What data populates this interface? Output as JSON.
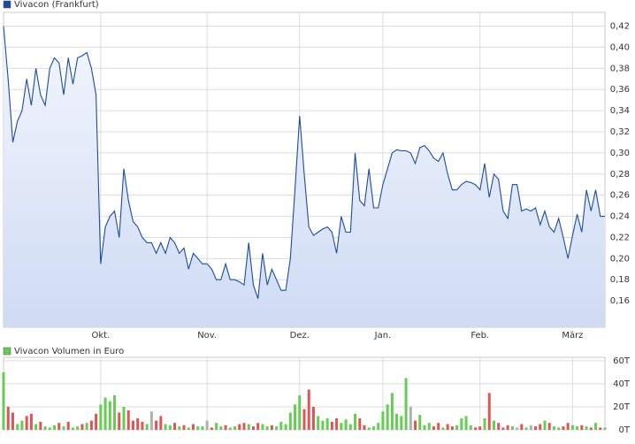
{
  "chart_data": [
    {
      "type": "area",
      "categories": [
        null,
        null,
        null,
        null,
        null,
        null,
        null,
        null,
        null,
        null,
        null,
        null,
        null,
        null,
        null,
        null,
        null,
        null,
        null,
        null,
        null,
        "Okt.",
        null,
        null,
        null,
        null,
        null,
        null,
        null,
        null,
        null,
        null,
        null,
        null,
        null,
        null,
        null,
        null,
        null,
        null,
        null,
        null,
        null,
        null,
        "Nov.",
        null,
        null,
        null,
        null,
        null,
        null,
        null,
        null,
        null,
        null,
        null,
        null,
        null,
        null,
        null,
        null,
        null,
        null,
        null,
        "Dez.",
        null,
        null,
        null,
        null,
        null,
        null,
        null,
        null,
        null,
        null,
        null,
        null,
        null,
        null,
        null,
        null,
        null,
        "Jan.",
        null,
        null,
        null,
        null,
        null,
        null,
        null,
        null,
        null,
        null,
        null,
        null,
        null,
        null,
        null,
        null,
        null,
        null,
        null,
        null,
        "Feb.",
        null,
        null,
        null,
        null,
        null,
        null,
        null,
        null,
        null,
        null,
        null,
        null,
        null,
        null,
        null,
        null,
        null,
        null,
        null,
        "März",
        null,
        null,
        null,
        null,
        null,
        null,
        null
      ],
      "series": [
        {
          "name": "Vivacon (Frankfurt)",
          "color": "#1c4c9e",
          "values": [
            0.42,
            0.37,
            0.31,
            0.33,
            0.34,
            0.37,
            0.345,
            0.38,
            0.355,
            0.345,
            0.38,
            0.39,
            0.385,
            0.355,
            0.39,
            0.365,
            0.39,
            0.392,
            0.395,
            0.38,
            0.355,
            0.195,
            0.23,
            0.24,
            0.245,
            0.22,
            0.285,
            0.255,
            0.235,
            0.23,
            0.22,
            0.215,
            0.215,
            0.205,
            0.215,
            0.205,
            0.22,
            0.215,
            0.205,
            0.21,
            0.19,
            0.205,
            0.2,
            0.195,
            0.195,
            0.19,
            0.18,
            0.18,
            0.195,
            0.18,
            0.18,
            0.178,
            0.175,
            0.215,
            0.175,
            0.162,
            0.205,
            0.175,
            0.19,
            0.18,
            0.17,
            0.17,
            0.2,
            0.265,
            0.335,
            0.28,
            0.23,
            0.222,
            0.225,
            0.228,
            0.23,
            0.225,
            0.205,
            0.24,
            0.225,
            0.225,
            0.3,
            0.255,
            0.25,
            0.285,
            0.248,
            0.248,
            0.27,
            0.285,
            0.3,
            0.303,
            0.302,
            0.302,
            0.3,
            0.29,
            0.305,
            0.307,
            0.302,
            0.295,
            0.292,
            0.3,
            0.28,
            0.265,
            0.265,
            0.27,
            0.273,
            0.272,
            0.27,
            0.265,
            0.29,
            0.258,
            0.28,
            0.275,
            0.245,
            0.238,
            0.27,
            0.27,
            0.245,
            0.247,
            0.245,
            0.248,
            0.232,
            0.245,
            0.23,
            0.225,
            0.238,
            0.22,
            0.2,
            0.222,
            0.242,
            0.225,
            0.265,
            0.245,
            0.265,
            0.24,
            0.24
          ]
        }
      ],
      "ylim": [
        0.135,
        0.433
      ],
      "yticks": [
        {
          "value": 0.16,
          "label": "0,16"
        },
        {
          "value": 0.18,
          "label": "0,18"
        },
        {
          "value": 0.2,
          "label": "0,20"
        },
        {
          "value": 0.22,
          "label": "0,22"
        },
        {
          "value": 0.24,
          "label": "0,24"
        },
        {
          "value": 0.26,
          "label": "0,26"
        },
        {
          "value": 0.28,
          "label": "0,28"
        },
        {
          "value": 0.3,
          "label": "0,30"
        },
        {
          "value": 0.32,
          "label": "0,32"
        },
        {
          "value": 0.34,
          "label": "0,34"
        },
        {
          "value": 0.36,
          "label": "0,36"
        },
        {
          "value": 0.38,
          "label": "0,38"
        },
        {
          "value": 0.4,
          "label": "0,40"
        },
        {
          "value": 0.42,
          "label": "0,42"
        }
      ],
      "grid": true
    },
    {
      "type": "bar",
      "series": [
        {
          "name": "Vivacon Volumen in Euro",
          "color": "#66cc55",
          "values": [
            50,
            20,
            15,
            5,
            8,
            12,
            14,
            5,
            7,
            3,
            2,
            4,
            6,
            3,
            7,
            2,
            3,
            5,
            6,
            8,
            14,
            22,
            28,
            25,
            30,
            15,
            20,
            17,
            8,
            10,
            7,
            5,
            16,
            8,
            12,
            5,
            4,
            6,
            3,
            4,
            2,
            5,
            3,
            3,
            8,
            2,
            6,
            3,
            4,
            2,
            3,
            5,
            6,
            5,
            3,
            6,
            5,
            3,
            4,
            3,
            7,
            5,
            15,
            22,
            30,
            18,
            35,
            20,
            12,
            8,
            10,
            7,
            10,
            6,
            9,
            5,
            14,
            10,
            4,
            2,
            3,
            6,
            16,
            22,
            32,
            14,
            12,
            45,
            20,
            8,
            13,
            4,
            6,
            3,
            6,
            2,
            5,
            3,
            4,
            10,
            12,
            4,
            2,
            3,
            10,
            32,
            8,
            6,
            2,
            4,
            3,
            2,
            5,
            2,
            4,
            3,
            5,
            8,
            6,
            3,
            2,
            3,
            6,
            4,
            3,
            4,
            3,
            2,
            6,
            2,
            2
          ],
          "colors": [
            "#66cc55",
            "#dd5555",
            "#dd5555",
            "#66cc55",
            "#66cc55",
            "#dd5555",
            "#dd5555",
            "#66cc55",
            "#dd5555",
            "#66cc55",
            "#66cc55",
            "#66cc55",
            "#dd5555",
            "#66cc55",
            "#dd5555",
            "#66cc55",
            "#66cc55",
            "#dd5555",
            "#66cc55",
            "#dd5555",
            "#dd5555",
            "#66cc55",
            "#66cc55",
            "#66cc55",
            "#66cc55",
            "#dd5555",
            "#66cc55",
            "#dd5555",
            "#dd5555",
            "#dd5555",
            "#dd5555",
            "#66cc55",
            "#b0b0b0",
            "#dd5555",
            "#dd5555",
            "#66cc55",
            "#66cc55",
            "#dd5555",
            "#66cc55",
            "#dd5555",
            "#66cc55",
            "#dd5555",
            "#66cc55",
            "#66cc55",
            "#b0b0b0",
            "#dd5555",
            "#66cc55",
            "#66cc55",
            "#dd5555",
            "#66cc55",
            "#66cc55",
            "#dd5555",
            "#dd5555",
            "#66cc55",
            "#dd5555",
            "#dd5555",
            "#66cc55",
            "#66cc55",
            "#dd5555",
            "#66cc55",
            "#66cc55",
            "#66cc55",
            "#66cc55",
            "#66cc55",
            "#66cc55",
            "#dd5555",
            "#dd5555",
            "#dd5555",
            "#66cc55",
            "#66cc55",
            "#66cc55",
            "#dd5555",
            "#dd5555",
            "#66cc55",
            "#66cc55",
            "#66cc55",
            "#66cc55",
            "#dd5555",
            "#dd5555",
            "#66cc55",
            "#66cc55",
            "#66cc55",
            "#66cc55",
            "#66cc55",
            "#66cc55",
            "#66cc55",
            "#66cc55",
            "#66cc55",
            "#b0b0b0",
            "#dd5555",
            "#66cc55",
            "#66cc55",
            "#66cc55",
            "#dd5555",
            "#dd5555",
            "#66cc55",
            "#dd5555",
            "#dd5555",
            "#66cc55",
            "#66cc55",
            "#66cc55",
            "#66cc55",
            "#dd5555",
            "#dd5555",
            "#66cc55",
            "#dd5555",
            "#66cc55",
            "#dd5555",
            "#dd5555",
            "#dd5555",
            "#66cc55",
            "#b0b0b0",
            "#dd5555",
            "#66cc55",
            "#b0b0b0",
            "#dd5555",
            "#dd5555",
            "#66cc55",
            "#dd5555",
            "#66cc55",
            "#66cc55",
            "#dd5555",
            "#dd5555",
            "#66cc55",
            "#66cc55",
            "#dd5555",
            "#66cc55",
            "#dd5555",
            "#66cc55",
            "#dd5555",
            "#66cc55"
          ]
        }
      ],
      "ylim": [
        0,
        63
      ],
      "yticks": [
        {
          "value": 0,
          "label": "0T"
        },
        {
          "value": 20,
          "label": "20T"
        },
        {
          "value": 40,
          "label": "40T"
        },
        {
          "value": 60,
          "label": "60T"
        }
      ],
      "grid": true
    }
  ]
}
